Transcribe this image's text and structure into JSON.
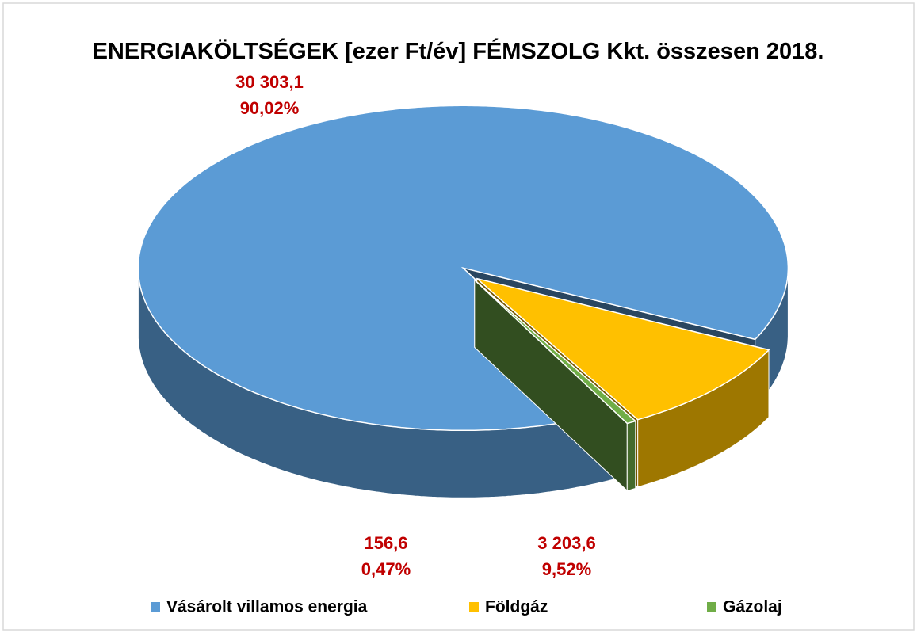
{
  "chart_data": {
    "type": "pie",
    "title": "ENERGIAKÖLTSÉGEK [ezer Ft/év] FÉMSZOLG Kkt. összesen 2018.",
    "categories": [
      "Vásárolt villamos energia",
      "Földgáz",
      "Gázolaj"
    ],
    "values": [
      30303.1,
      3203.6,
      156.6
    ],
    "value_labels": [
      "30 303,1",
      "3 203,6",
      "156,6"
    ],
    "percents": [
      90.02,
      9.52,
      0.47
    ],
    "percent_labels": [
      "90,02%",
      "9,52%",
      "0,47%"
    ],
    "colors": [
      "#5b9bd5",
      "#ffc000",
      "#70ad47"
    ],
    "legend": "bottom"
  }
}
